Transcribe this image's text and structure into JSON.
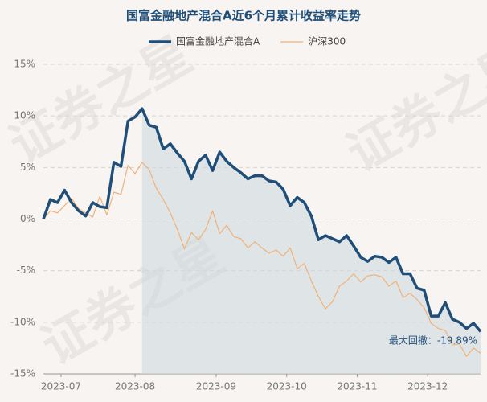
{
  "chart_data": {
    "type": "line",
    "title": "国富金融地产混合A近6个月累计收益率走势",
    "watermark": "证券之星",
    "annotation": "最大回撤：-19.89%",
    "x": [
      0,
      2,
      4,
      6,
      8,
      10,
      12,
      14,
      16,
      18,
      20,
      22,
      24,
      26,
      28,
      30,
      32,
      34,
      36,
      38,
      40,
      42,
      44,
      46,
      48,
      50,
      52,
      54,
      56,
      58,
      60,
      62,
      64,
      66,
      68,
      70,
      72,
      74,
      76,
      78,
      80,
      82,
      84,
      86,
      88,
      90,
      92,
      94,
      96,
      98,
      100,
      102,
      104,
      106,
      108,
      110,
      112,
      114,
      116,
      118,
      120,
      122,
      124
    ],
    "xlim": [
      0,
      124
    ],
    "xticks": [
      {
        "value": 5,
        "label": "2023-07"
      },
      {
        "value": 26,
        "label": "2023-08"
      },
      {
        "value": 49,
        "label": "2023-09"
      },
      {
        "value": 69,
        "label": "2023-10"
      },
      {
        "value": 89,
        "label": "2023-11"
      },
      {
        "value": 109,
        "label": "2023-12"
      }
    ],
    "ylim": [
      -15,
      15
    ],
    "yticks": [
      {
        "value": -15,
        "label": "-15%"
      },
      {
        "value": -10,
        "label": "-10%"
      },
      {
        "value": -5,
        "label": "-5%"
      },
      {
        "value": 0,
        "label": "0%"
      },
      {
        "value": 5,
        "label": "5%"
      },
      {
        "value": 10,
        "label": "10%"
      },
      {
        "value": 15,
        "label": "15%"
      }
    ],
    "grid": true,
    "series": [
      {
        "name": "国富金融地产混合A",
        "color": "#1f4e79",
        "width": 3.5,
        "values": [
          0,
          1.9,
          1.6,
          2.8,
          1.6,
          0.8,
          0.3,
          1.6,
          1.2,
          1.1,
          5.5,
          5.1,
          9.5,
          9.9,
          10.7,
          9.1,
          8.9,
          6.8,
          7.3,
          6.4,
          5.6,
          3.9,
          5.6,
          6.2,
          4.7,
          6.5,
          5.6,
          5.0,
          4.5,
          3.9,
          4.2,
          4.2,
          3.7,
          3.6,
          2.9,
          1.3,
          2.1,
          1.6,
          0.3,
          -2.0,
          -1.6,
          -1.9,
          -2.2,
          -1.6,
          -2.6,
          -3.7,
          -4.1,
          -3.6,
          -3.7,
          -4.2,
          -3.7,
          -5.3,
          -5.3,
          -6.7,
          -6.9,
          -9.4,
          -9.4,
          -8.1,
          -9.7,
          -10.0,
          -10.6,
          -10.1,
          -10.9
        ]
      },
      {
        "name": "沪深300",
        "color": "#f0b27a",
        "width": 1.2,
        "values": [
          0,
          0.8,
          0.6,
          1.3,
          2.0,
          1.0,
          0.6,
          0.2,
          2.2,
          0.4,
          2.6,
          2.4,
          5.2,
          4.4,
          5.5,
          4.8,
          3.0,
          1.9,
          0.6,
          -1.0,
          -2.9,
          -1.3,
          -2.0,
          -1.0,
          0.8,
          -1.4,
          -0.6,
          -1.7,
          -1.9,
          -2.8,
          -2.2,
          -2.8,
          -3.3,
          -3.0,
          -3.6,
          -2.8,
          -4.8,
          -4.3,
          -6.0,
          -7.5,
          -8.7,
          -8.0,
          -6.5,
          -6.0,
          -5.3,
          -6.1,
          -5.5,
          -5.4,
          -5.6,
          -6.5,
          -6.0,
          -7.6,
          -7.2,
          -7.8,
          -8.6,
          -10.1,
          -10.6,
          -10.8,
          -12.2,
          -12.1,
          -13.3,
          -12.5,
          -13.0
        ]
      }
    ]
  }
}
